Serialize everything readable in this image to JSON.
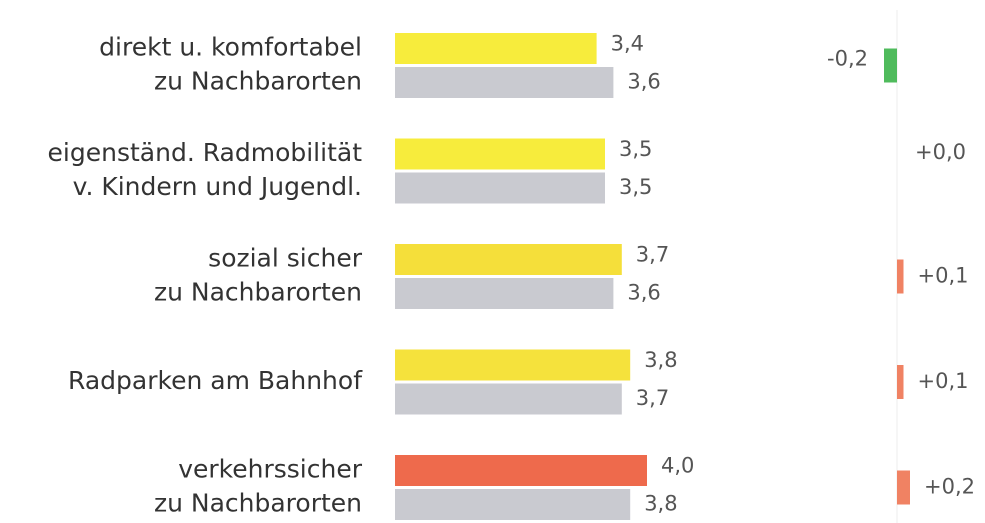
{
  "chart_data": {
    "type": "paired-bar",
    "categories": [
      [
        "direkt u. komfortabel",
        "zu Nachbarorten"
      ],
      [
        "eigenständ. Radmobilität",
        "v. Kindern und Jugendl."
      ],
      [
        "sozial sicher",
        "zu Nachbarorten"
      ],
      [
        "Radparken am Bahnhof"
      ],
      [
        "verkehrssicher",
        "zu Nachbarorten"
      ]
    ],
    "series": [
      {
        "colors": [
          "#f7ec3c",
          "#f7ec3c",
          "#f5df3a",
          "#f5e23c",
          "#ee6a4c"
        ],
        "values": [
          3.4,
          3.5,
          3.7,
          3.8,
          4.0
        ],
        "value_labels": [
          "3,4",
          "3,5",
          "3,7",
          "3,8",
          "4,0"
        ]
      },
      {
        "color": "#c9cad0",
        "values": [
          3.6,
          3.5,
          3.6,
          3.7,
          3.8
        ],
        "value_labels": [
          "3,6",
          "3,5",
          "3,6",
          "3,7",
          "3,8"
        ]
      }
    ],
    "xlim": [
      1,
      5
    ],
    "difference": {
      "values": [
        -0.2,
        0.0,
        0.1,
        0.1,
        0.2
      ],
      "value_labels": [
        "-0,2",
        "+0,0",
        "+0,1",
        "+0,1",
        "+0,2"
      ],
      "negative_color": "#4fbb5c",
      "positive_color": "#f08263",
      "xlim": [
        -1,
        1
      ]
    }
  }
}
